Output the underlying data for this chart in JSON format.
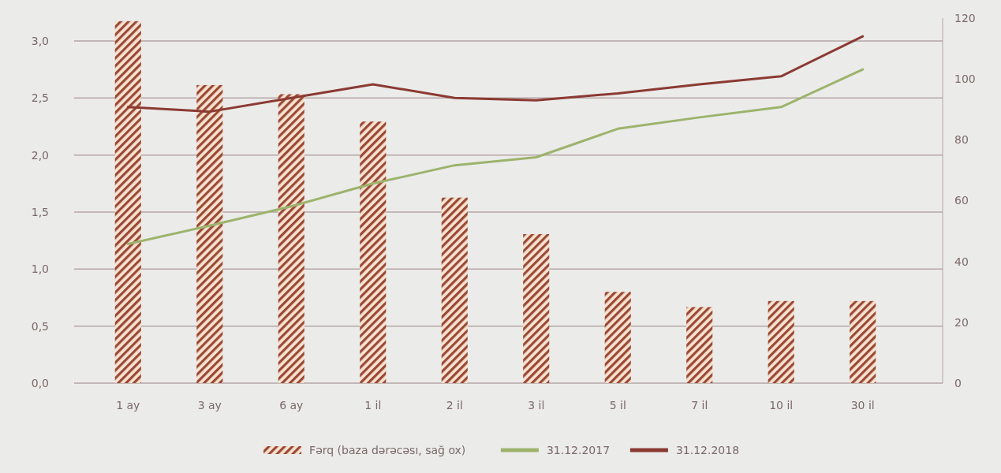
{
  "chart_data": {
    "type": "line",
    "categories": [
      "1 ay",
      "3 ay",
      "6 ay",
      "1 il",
      "2 il",
      "3 il",
      "5 il",
      "7 il",
      "10 il",
      "30 il"
    ],
    "series": [
      {
        "name": "Fərq (baza dərəcəsı, sağ ox)",
        "type": "bar",
        "axis": "y2",
        "color": "#9a4a34",
        "values": [
          119,
          98,
          95,
          86,
          61,
          49,
          30,
          25,
          27,
          27
        ]
      },
      {
        "name": "31.12.2017",
        "color": "#9db36c",
        "values": [
          1.22,
          1.38,
          1.55,
          1.75,
          1.91,
          1.98,
          2.23,
          2.33,
          2.42,
          2.75
        ]
      },
      {
        "name": "31.12.2018",
        "color": "#8b3a32",
        "values": [
          2.42,
          2.38,
          2.5,
          2.62,
          2.5,
          2.48,
          2.54,
          2.62,
          2.69,
          3.04
        ]
      }
    ],
    "ylim": [
      0,
      3.2
    ],
    "yticks": [
      {
        "value": 0,
        "label": "0,0"
      },
      {
        "value": 0.5,
        "label": "0,5"
      },
      {
        "value": 1,
        "label": "1,0"
      },
      {
        "value": 1.5,
        "label": "1,5"
      },
      {
        "value": 2,
        "label": "2,0"
      },
      {
        "value": 2.5,
        "label": "2,5"
      },
      {
        "value": 3,
        "label": "3,0"
      }
    ],
    "y2lim": [
      0,
      120
    ],
    "y2ticks": [
      0,
      20,
      40,
      60,
      80,
      100,
      120
    ],
    "grid": "y",
    "legend": "bottom",
    "line_style": "solid",
    "marker": "none"
  }
}
